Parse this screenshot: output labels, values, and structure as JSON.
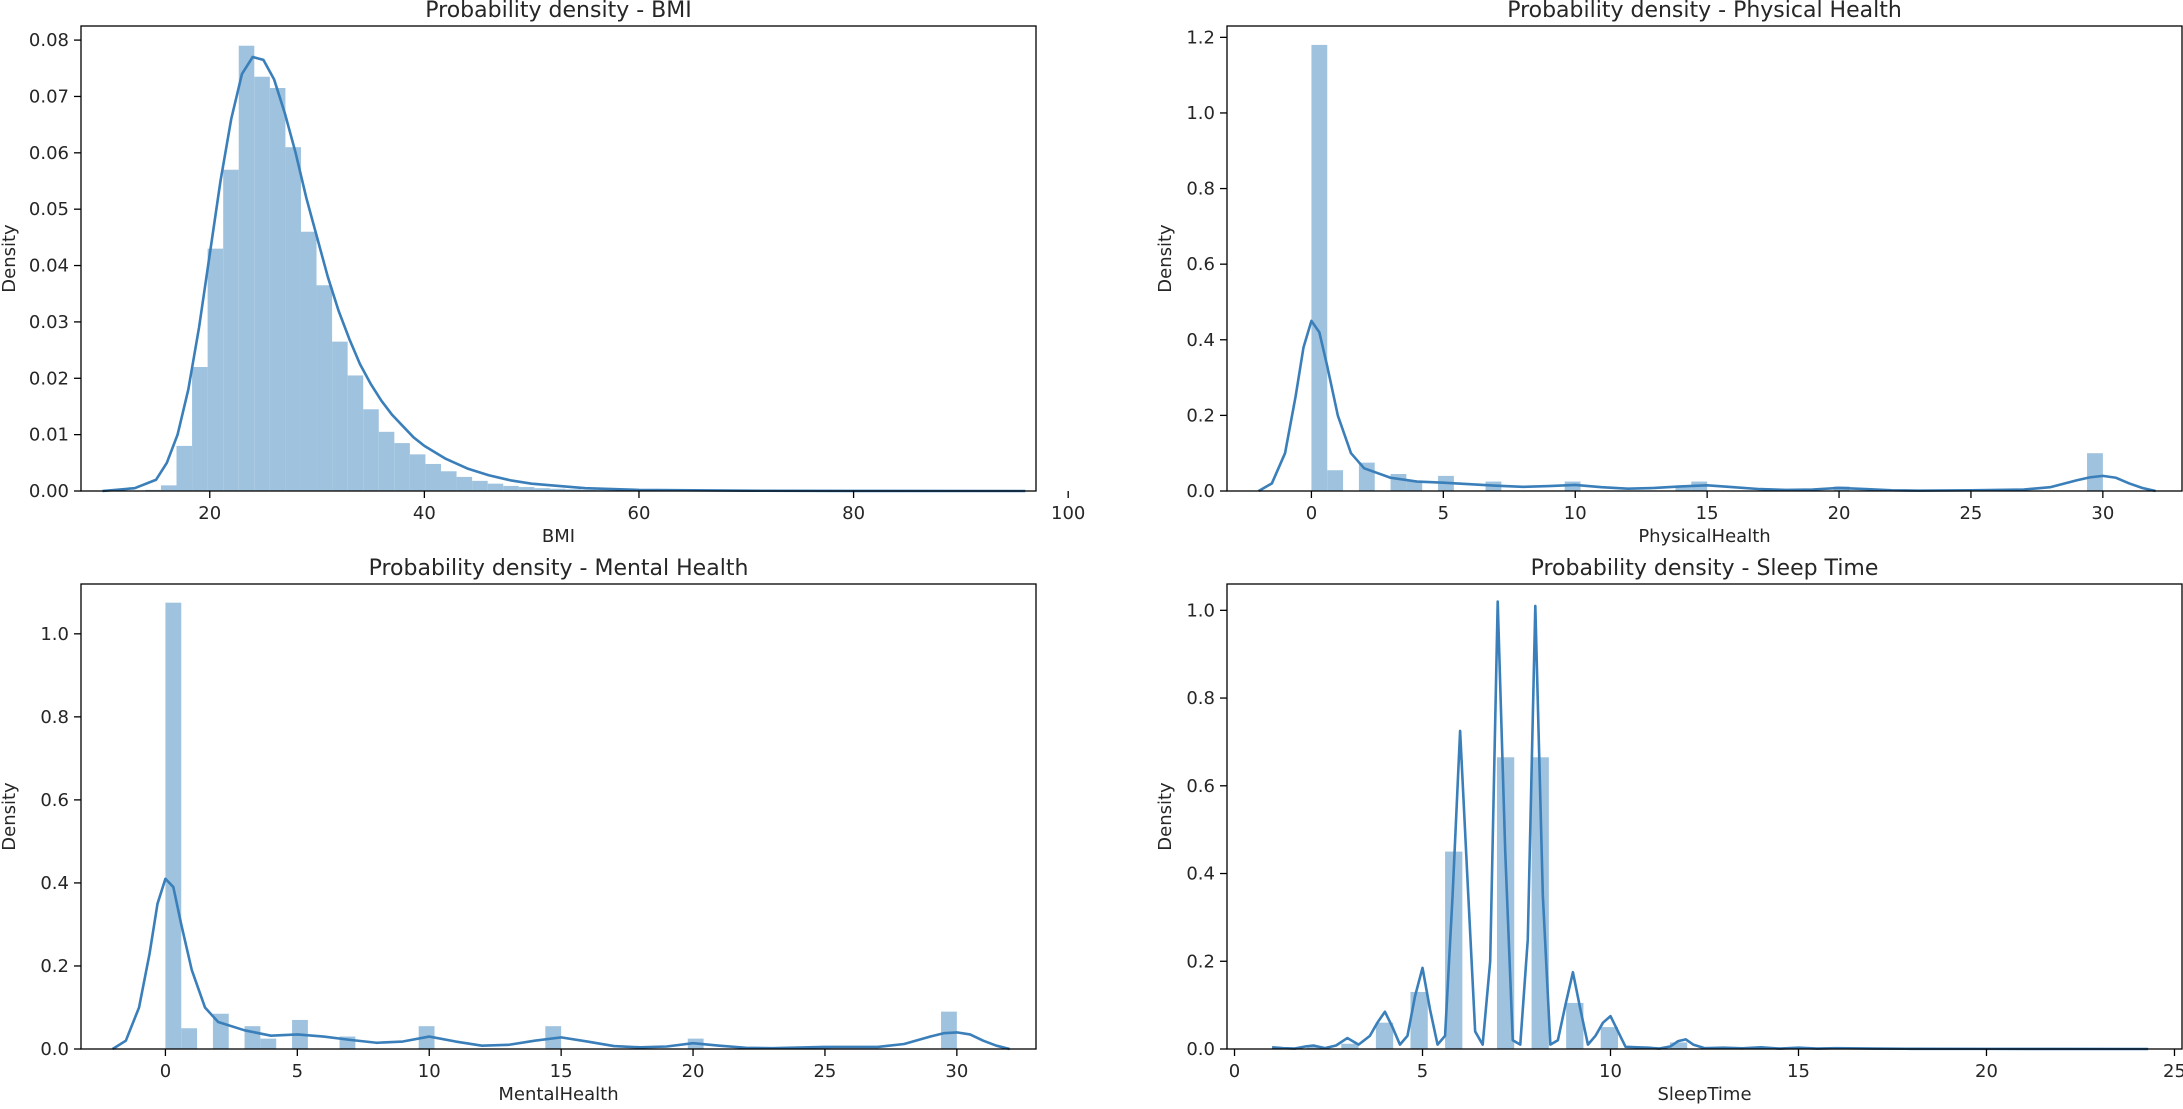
{
  "chart_data": [
    {
      "type": "histogram",
      "title": "Probability density - BMI",
      "xlabel": "BMI",
      "ylabel": "Density",
      "xlim": [
        8,
        97
      ],
      "ylim": [
        0,
        0.0825
      ],
      "xticks": [
        20,
        40,
        60,
        80,
        100
      ],
      "yticks": [
        0.0,
        0.01,
        0.02,
        0.03,
        0.04,
        0.05,
        0.06,
        0.07,
        0.08
      ],
      "tick_decimals": 2,
      "grid": false,
      "bin_width": 1.45,
      "bins": [
        {
          "x": 14.0,
          "density": 0.0002
        },
        {
          "x": 15.45,
          "density": 0.001
        },
        {
          "x": 16.9,
          "density": 0.008
        },
        {
          "x": 18.35,
          "density": 0.022
        },
        {
          "x": 19.8,
          "density": 0.043
        },
        {
          "x": 21.25,
          "density": 0.057
        },
        {
          "x": 22.7,
          "density": 0.079
        },
        {
          "x": 24.15,
          "density": 0.0735
        },
        {
          "x": 25.6,
          "density": 0.0715
        },
        {
          "x": 27.05,
          "density": 0.061
        },
        {
          "x": 28.5,
          "density": 0.046
        },
        {
          "x": 29.95,
          "density": 0.0365
        },
        {
          "x": 31.4,
          "density": 0.0265
        },
        {
          "x": 32.85,
          "density": 0.0205
        },
        {
          "x": 34.3,
          "density": 0.0145
        },
        {
          "x": 35.75,
          "density": 0.0105
        },
        {
          "x": 37.2,
          "density": 0.0085
        },
        {
          "x": 38.65,
          "density": 0.0065
        },
        {
          "x": 40.1,
          "density": 0.0048
        },
        {
          "x": 41.55,
          "density": 0.0035
        },
        {
          "x": 43.0,
          "density": 0.0025
        },
        {
          "x": 44.45,
          "density": 0.0018
        },
        {
          "x": 45.9,
          "density": 0.0013
        },
        {
          "x": 47.35,
          "density": 0.0009
        },
        {
          "x": 48.8,
          "density": 0.0007
        },
        {
          "x": 50.25,
          "density": 0.0005
        },
        {
          "x": 51.7,
          "density": 0.0004
        },
        {
          "x": 53.15,
          "density": 0.0003
        },
        {
          "x": 54.6,
          "density": 0.0002
        },
        {
          "x": 56.05,
          "density": 0.00015
        }
      ],
      "kde": {
        "x": [
          10,
          13,
          15,
          16,
          17,
          18,
          19,
          20,
          21,
          22,
          23,
          24,
          25,
          26,
          27,
          28,
          29,
          30,
          31,
          32,
          33,
          34,
          35,
          36,
          37,
          38,
          39,
          40,
          42,
          44,
          46,
          48,
          50,
          55,
          60,
          70,
          80,
          96
        ],
        "y": [
          0,
          0.0005,
          0.002,
          0.005,
          0.01,
          0.018,
          0.029,
          0.042,
          0.055,
          0.066,
          0.074,
          0.077,
          0.0765,
          0.073,
          0.067,
          0.06,
          0.052,
          0.045,
          0.038,
          0.032,
          0.027,
          0.0225,
          0.019,
          0.016,
          0.0135,
          0.0115,
          0.0095,
          0.008,
          0.0057,
          0.004,
          0.0028,
          0.0019,
          0.0013,
          0.0005,
          0.0002,
          5e-05,
          2e-05,
          0
        ]
      }
    },
    {
      "type": "histogram",
      "title": "Probability density - Physical Health",
      "xlabel": "PhysicalHealth",
      "ylabel": "Density",
      "xlim": [
        -3.2,
        33
      ],
      "ylim": [
        0,
        1.23
      ],
      "xticks": [
        0,
        5,
        10,
        15,
        20,
        25,
        30
      ],
      "yticks": [
        0.0,
        0.2,
        0.4,
        0.6,
        0.8,
        1.0,
        1.2
      ],
      "tick_decimals": 1,
      "grid": false,
      "bin_width": 0.6,
      "bins": [
        {
          "x": 0.0,
          "density": 1.18
        },
        {
          "x": 0.6,
          "density": 0.055
        },
        {
          "x": 1.8,
          "density": 0.075
        },
        {
          "x": 3.0,
          "density": 0.045
        },
        {
          "x": 3.6,
          "density": 0.025
        },
        {
          "x": 4.8,
          "density": 0.04
        },
        {
          "x": 6.6,
          "density": 0.025
        },
        {
          "x": 9.6,
          "density": 0.025
        },
        {
          "x": 13.8,
          "density": 0.01
        },
        {
          "x": 14.4,
          "density": 0.025
        },
        {
          "x": 19.8,
          "density": 0.012
        },
        {
          "x": 29.4,
          "density": 0.1
        }
      ],
      "kde": {
        "x": [
          -2,
          -1.5,
          -1,
          -0.6,
          -0.3,
          0,
          0.3,
          0.6,
          1,
          1.5,
          2,
          3,
          4,
          5,
          6,
          7,
          8,
          9,
          10,
          11,
          12,
          13,
          14,
          15,
          16,
          17,
          18,
          19,
          20,
          21,
          22,
          23,
          25,
          27,
          28,
          29,
          29.5,
          30,
          30.5,
          31,
          31.5,
          32
        ],
        "y": [
          0,
          0.02,
          0.1,
          0.25,
          0.38,
          0.45,
          0.42,
          0.33,
          0.2,
          0.1,
          0.06,
          0.035,
          0.025,
          0.022,
          0.018,
          0.014,
          0.011,
          0.013,
          0.016,
          0.01,
          0.006,
          0.008,
          0.012,
          0.015,
          0.01,
          0.005,
          0.003,
          0.004,
          0.008,
          0.005,
          0.002,
          0.001,
          0.002,
          0.004,
          0.01,
          0.028,
          0.036,
          0.04,
          0.035,
          0.02,
          0.008,
          0
        ]
      }
    },
    {
      "type": "histogram",
      "title": "Probability density - Mental Health",
      "xlabel": "MentalHealth",
      "ylabel": "Density",
      "xlim": [
        -3.2,
        33
      ],
      "ylim": [
        0,
        1.12
      ],
      "xticks": [
        0,
        5,
        10,
        15,
        20,
        25,
        30
      ],
      "yticks": [
        0.0,
        0.2,
        0.4,
        0.6,
        0.8,
        1.0
      ],
      "tick_decimals": 1,
      "grid": false,
      "bin_width": 0.6,
      "bins": [
        {
          "x": 0.0,
          "density": 1.075
        },
        {
          "x": 0.6,
          "density": 0.05
        },
        {
          "x": 1.8,
          "density": 0.085
        },
        {
          "x": 3.0,
          "density": 0.055
        },
        {
          "x": 3.6,
          "density": 0.025
        },
        {
          "x": 4.8,
          "density": 0.07
        },
        {
          "x": 6.6,
          "density": 0.03
        },
        {
          "x": 9.6,
          "density": 0.055
        },
        {
          "x": 14.4,
          "density": 0.055
        },
        {
          "x": 19.8,
          "density": 0.025
        },
        {
          "x": 24.6,
          "density": 0.005
        },
        {
          "x": 29.4,
          "density": 0.09
        }
      ],
      "kde": {
        "x": [
          -2,
          -1.5,
          -1,
          -0.6,
          -0.3,
          0,
          0.3,
          0.6,
          1,
          1.5,
          2,
          3,
          4,
          5,
          6,
          7,
          8,
          9,
          10,
          11,
          12,
          13,
          14,
          15,
          16,
          17,
          18,
          19,
          20,
          21,
          22,
          23,
          25,
          27,
          28,
          29,
          29.5,
          30,
          30.5,
          31,
          31.5,
          32
        ],
        "y": [
          0,
          0.02,
          0.1,
          0.23,
          0.35,
          0.41,
          0.39,
          0.3,
          0.19,
          0.1,
          0.065,
          0.045,
          0.032,
          0.035,
          0.03,
          0.022,
          0.015,
          0.018,
          0.03,
          0.018,
          0.008,
          0.01,
          0.02,
          0.028,
          0.018,
          0.007,
          0.004,
          0.006,
          0.014,
          0.008,
          0.003,
          0.002,
          0.005,
          0.005,
          0.012,
          0.03,
          0.038,
          0.04,
          0.035,
          0.02,
          0.008,
          0
        ]
      }
    },
    {
      "type": "histogram",
      "title": "Probability density - Sleep Time",
      "xlabel": "SleepTime",
      "ylabel": "Density",
      "xlim": [
        -0.2,
        25.2
      ],
      "ylim": [
        0,
        1.06
      ],
      "xticks": [
        0,
        5,
        10,
        15,
        20,
        25
      ],
      "yticks": [
        0.0,
        0.2,
        0.4,
        0.6,
        0.8,
        1.0
      ],
      "tick_decimals": 1,
      "grid": false,
      "bin_width": 0.46,
      "bins": [
        {
          "x": 1.0,
          "density": 0.003
        },
        {
          "x": 1.92,
          "density": 0.006
        },
        {
          "x": 2.84,
          "density": 0.012
        },
        {
          "x": 3.76,
          "density": 0.06
        },
        {
          "x": 4.68,
          "density": 0.13
        },
        {
          "x": 5.6,
          "density": 0.45
        },
        {
          "x": 6.98,
          "density": 0.665
        },
        {
          "x": 7.9,
          "density": 0.665
        },
        {
          "x": 8.82,
          "density": 0.105
        },
        {
          "x": 9.74,
          "density": 0.05
        },
        {
          "x": 11.58,
          "density": 0.015
        },
        {
          "x": 13.88,
          "density": 0.003
        }
      ],
      "kde": {
        "x": [
          1,
          1.3,
          1.6,
          1.9,
          2.1,
          2.4,
          2.7,
          3,
          3.3,
          3.6,
          3.8,
          4,
          4.2,
          4.4,
          4.6,
          4.8,
          5,
          5.2,
          5.4,
          5.6,
          5.8,
          6,
          6.2,
          6.4,
          6.6,
          6.8,
          7,
          7.2,
          7.4,
          7.6,
          7.8,
          8,
          8.2,
          8.4,
          8.6,
          8.8,
          9,
          9.2,
          9.4,
          9.6,
          9.8,
          10,
          10.2,
          10.4,
          10.7,
          11,
          11.3,
          11.6,
          11.8,
          12,
          12.2,
          12.5,
          13,
          13.5,
          14,
          14.5,
          15,
          15.5,
          16,
          17,
          18,
          20,
          22,
          24.3
        ],
        "y": [
          0.004,
          0.002,
          0.001,
          0.006,
          0.008,
          0.002,
          0.008,
          0.025,
          0.01,
          0.03,
          0.06,
          0.085,
          0.05,
          0.01,
          0.03,
          0.12,
          0.185,
          0.09,
          0.01,
          0.03,
          0.35,
          0.725,
          0.38,
          0.04,
          0.01,
          0.2,
          1.02,
          0.45,
          0.02,
          0.01,
          0.25,
          1.01,
          0.35,
          0.01,
          0.02,
          0.1,
          0.175,
          0.09,
          0.01,
          0.03,
          0.06,
          0.075,
          0.04,
          0.005,
          0.004,
          0.003,
          0.001,
          0.006,
          0.018,
          0.022,
          0.01,
          0.002,
          0.003,
          0.0015,
          0.004,
          0.001,
          0.003,
          0.001,
          0.002,
          0.001,
          0.0005,
          0.0003,
          0.0002,
          0
        ]
      }
    }
  ]
}
